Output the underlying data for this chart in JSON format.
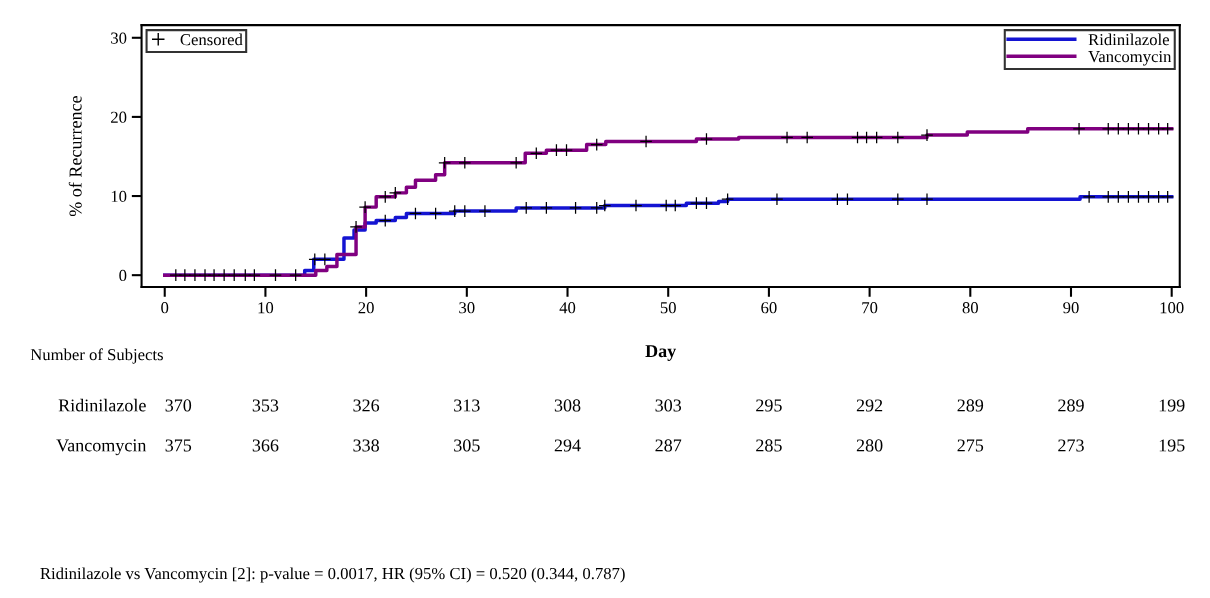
{
  "chart_data": {
    "type": "step",
    "ylabel": "% of Recurrence",
    "xlabel": "Day",
    "xlim": [
      -2.3,
      100.8
    ],
    "xticks": [
      0,
      10,
      20,
      30,
      40,
      50,
      60,
      70,
      80,
      90,
      100
    ],
    "ylim": [
      -1.5,
      31.6
    ],
    "yticks": [
      0,
      10,
      20,
      30
    ],
    "grid": false,
    "legend": "top right",
    "line_style": "solid",
    "marker": "none",
    "series": [
      {
        "name": "Ridinilazole",
        "color": "#1414d2",
        "x": [
          0,
          13.9,
          14.8,
          17.8,
          18.8,
          19.9,
          21.0,
          22.9,
          24.0,
          28.8,
          34.9,
          43.7,
          51.8,
          55.0,
          55.9,
          90.9,
          100
        ],
        "values": [
          0,
          0.6,
          2.0,
          4.7,
          5.7,
          6.6,
          6.9,
          7.3,
          7.8,
          8.1,
          8.5,
          8.8,
          9.1,
          9.3,
          9.6,
          9.9,
          9.9
        ]
      },
      {
        "name": "Vancomycin",
        "color": "#800080",
        "x": [
          0,
          15.0,
          16.1,
          17.1,
          19.0,
          19.9,
          21.0,
          22.9,
          24.0,
          24.9,
          26.9,
          27.8,
          35.8,
          37.9,
          41.9,
          43.8,
          52.8,
          57.0,
          75.7,
          79.7,
          85.7,
          100
        ],
        "values": [
          0,
          0.6,
          1.1,
          2.6,
          6.1,
          8.6,
          9.9,
          10.4,
          11.1,
          12.0,
          12.7,
          14.2,
          15.4,
          15.8,
          16.5,
          16.9,
          17.2,
          17.4,
          17.7,
          18.1,
          18.5,
          18.5
        ]
      },
      {
        "name": "Censored",
        "type": "scatter",
        "marker": "cross",
        "color": "#000000",
        "x": [
          1.1,
          2.0,
          3.0,
          4.0,
          4.9,
          5.9,
          6.9,
          8.0,
          8.9,
          11.0,
          13.0,
          14.9,
          15.9,
          21.9,
          24.9,
          26.9,
          28.8,
          29.8,
          31.8,
          35.9,
          37.9,
          40.8,
          42.9,
          43.7,
          46.8,
          49.8,
          50.7,
          52.8,
          53.8,
          55.9,
          60.8,
          66.8,
          67.8,
          72.8,
          75.7,
          91.8,
          93.7,
          94.7,
          95.7,
          96.7,
          97.7,
          98.7,
          99.6,
          19.0,
          19.9,
          21.9,
          22.9,
          27.8,
          29.8,
          34.9,
          36.9,
          38.9,
          39.9,
          42.9,
          47.8,
          53.8,
          61.8,
          63.8,
          68.8,
          69.7,
          70.7,
          72.8,
          75.7,
          90.8,
          93.7,
          94.7,
          95.7,
          96.7,
          97.7,
          98.7,
          99.6
        ],
        "values": [
          0,
          0,
          0,
          0,
          0,
          0,
          0,
          0,
          0,
          0,
          0,
          2.0,
          2.0,
          6.9,
          7.8,
          7.8,
          8.1,
          8.1,
          8.1,
          8.5,
          8.5,
          8.5,
          8.5,
          8.8,
          8.8,
          8.8,
          8.8,
          9.1,
          9.1,
          9.6,
          9.6,
          9.6,
          9.6,
          9.6,
          9.6,
          9.9,
          9.9,
          9.9,
          9.9,
          9.9,
          9.9,
          9.9,
          9.9,
          6.1,
          8.6,
          9.9,
          10.4,
          14.2,
          14.2,
          14.2,
          15.4,
          15.8,
          15.8,
          16.5,
          16.9,
          17.2,
          17.4,
          17.4,
          17.4,
          17.4,
          17.4,
          17.4,
          17.7,
          18.5,
          18.5,
          18.5,
          18.5,
          18.5,
          18.5,
          18.5,
          18.5
        ]
      }
    ],
    "annotations": [
      "Number of Subjects",
      "Ridinilazole",
      "370",
      "353",
      "326",
      "313",
      "308",
      "303",
      "295",
      "292",
      "289",
      "289",
      "199",
      "Vancomycin",
      "375",
      "366",
      "338",
      "305",
      "294",
      "287",
      "285",
      "280",
      "275",
      "273",
      "195",
      "Ridinilazole vs Vancomycin [2]: p-value = 0.0017, HR (95% CI) = 0.520 (0.344, 0.787)"
    ]
  }
}
